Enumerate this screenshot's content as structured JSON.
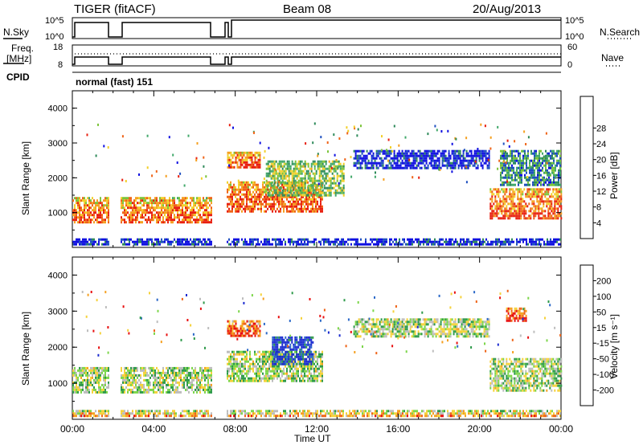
{
  "header": {
    "title": "TIGER (fitACF)",
    "beam": "Beam 08",
    "date": "20/Aug/2013"
  },
  "strips": {
    "nsky": {
      "label": "N.Sky",
      "right_label": "N.Search",
      "ticks_left": [
        "10^5",
        "10^0"
      ],
      "ticks_right": [
        "10^5",
        "10^0"
      ],
      "right_legend_style": "dotted"
    },
    "freq": {
      "label_lines": [
        "Freq.",
        "[MHz]"
      ],
      "right_label": "Nave",
      "ticks_left": [
        "18",
        "8"
      ],
      "ticks_right": [
        "60",
        "0"
      ],
      "right_legend_style": "dotted"
    },
    "cpid": {
      "label": "CPID",
      "value": "normal (fast) 151"
    }
  },
  "chart_data": [
    {
      "type": "heatmap",
      "panel": "power",
      "ylabel": "Slant Range [km]",
      "xlabel": "",
      "ylim": [
        0,
        4500
      ],
      "yticks": [
        "1000",
        "2000",
        "3000",
        "4000"
      ],
      "xlim_hours": [
        0,
        24
      ],
      "colorbar": {
        "label": "Power [dB]",
        "ticks": [
          "4",
          "8",
          "12",
          "16",
          "20",
          "24",
          "28"
        ],
        "colors": [
          "#1010e0",
          "#1f50c0",
          "#2e8a5a",
          "#41a86a",
          "#7cc43a",
          "#f2d02a",
          "#f5a020",
          "#ef6418",
          "#e82010"
        ]
      },
      "data_gaps_hours": [
        [
          1.8,
          2.3
        ],
        [
          6.8,
          7.5
        ]
      ],
      "bands": [
        {
          "start_h": 0.0,
          "end_h": 6.8,
          "r0": 750,
          "r1": 1450,
          "level": 0.78
        },
        {
          "start_h": 7.5,
          "end_h": 12.3,
          "r0": 1050,
          "r1": 1900,
          "level": 0.8
        },
        {
          "start_h": 7.6,
          "end_h": 9.2,
          "r0": 2300,
          "r1": 2750,
          "level": 0.82
        },
        {
          "start_h": 9.5,
          "end_h": 13.3,
          "r0": 1500,
          "r1": 2500,
          "level": 0.45
        },
        {
          "start_h": 13.8,
          "end_h": 20.5,
          "r0": 2300,
          "r1": 2800,
          "level": 0.06
        },
        {
          "start_h": 20.5,
          "end_h": 24.0,
          "r0": 800,
          "r1": 1700,
          "level": 0.82
        },
        {
          "start_h": 21.0,
          "end_h": 24.0,
          "r0": 1800,
          "r1": 2800,
          "level": 0.3
        },
        {
          "start_h": 0.0,
          "end_h": 24.0,
          "r0": 100,
          "r1": 260,
          "level": 0.06
        }
      ]
    },
    {
      "type": "heatmap",
      "panel": "velocity",
      "ylabel": "Slant Range [km]",
      "xlabel": "Time UT",
      "ylim": [
        0,
        4500
      ],
      "yticks": [
        "1000",
        "2000",
        "3000",
        "4000"
      ],
      "xticks": [
        "00:00",
        "04:00",
        "08:00",
        "12:00",
        "16:00",
        "20:00",
        "00:00"
      ],
      "xlim_hours": [
        0,
        24
      ],
      "colorbar": {
        "label": "Velocity [m s⁻¹]",
        "ticks": [
          "200",
          "100",
          "50",
          "15",
          "-15",
          "-50",
          "-100",
          "-200"
        ],
        "colors": [
          "#1a2ad0",
          "#2a68c8",
          "#2e9a4a",
          "#7cd64a",
          "#bdbdbd",
          "#f5d23a",
          "#f5a020",
          "#ef6418",
          "#e81010"
        ]
      },
      "data_gaps_hours": [
        [
          1.8,
          2.3
        ],
        [
          6.8,
          7.5
        ]
      ],
      "bands": [
        {
          "start_h": 0.0,
          "end_h": 6.8,
          "r0": 750,
          "r1": 1450,
          "level": 0.45
        },
        {
          "start_h": 7.5,
          "end_h": 12.3,
          "r0": 1050,
          "r1": 1900,
          "level": 0.45
        },
        {
          "start_h": 9.8,
          "end_h": 11.8,
          "r0": 1550,
          "r1": 2300,
          "level": 0.05
        },
        {
          "start_h": 7.6,
          "end_h": 9.2,
          "r0": 2300,
          "r1": 2750,
          "level": 0.85
        },
        {
          "start_h": 13.8,
          "end_h": 20.5,
          "r0": 2300,
          "r1": 2800,
          "level": 0.45
        },
        {
          "start_h": 20.5,
          "end_h": 24.0,
          "r0": 800,
          "r1": 1700,
          "level": 0.45
        },
        {
          "start_h": 21.3,
          "end_h": 22.3,
          "r0": 2700,
          "r1": 3100,
          "level": 0.92
        },
        {
          "start_h": 0.0,
          "end_h": 24.0,
          "r0": 100,
          "r1": 260,
          "level": 0.62
        }
      ]
    }
  ]
}
